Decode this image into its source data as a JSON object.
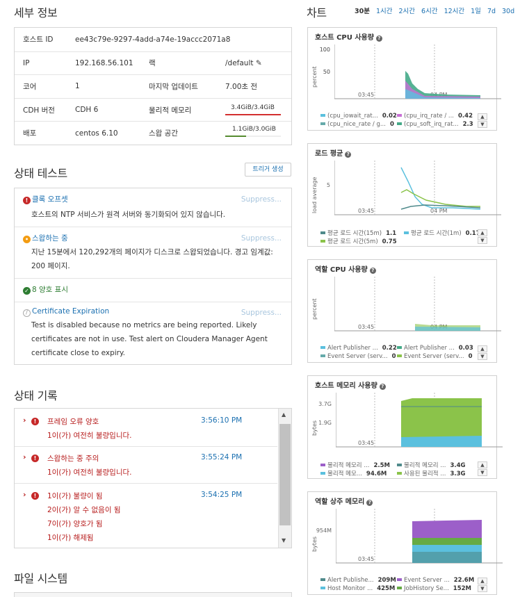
{
  "details": {
    "title": "세부 정보",
    "rows": [
      {
        "l1": "호스트 ID",
        "v1": "ee43c79e-9297-4add-a74e-19accc2071a8"
      },
      {
        "l1": "IP",
        "v1": "192.168.56.101",
        "l2": "랙",
        "v2": "/default"
      },
      {
        "l1": "코어",
        "v1": "1",
        "l2": "마지막 업데이트",
        "v2": "7.00초 전"
      },
      {
        "l1": "CDH 버전",
        "v1": "CDH 6",
        "l2": "물리적 메모리",
        "v2": "3.4GiB/3.4GiB"
      },
      {
        "l1": "배포",
        "v1": "centos 6.10",
        "l2": "스왑 공간",
        "v2": "1.1GiB/3.0GiB"
      }
    ]
  },
  "memory_bars": {
    "physical": 1.0,
    "swap": 0.37
  },
  "health_tests": {
    "title": "상태 테스트",
    "create_trigger": "트리거 생성",
    "items": [
      {
        "name": "클록 오프셋",
        "suppress": "Suppress...",
        "desc": "호스트의 NTP 서비스가 원격 서버와 동기화되어 있지 않습니다."
      },
      {
        "name": "스왑하는 중",
        "suppress": "Suppress...",
        "desc": "지난 15분에서 120,292개의 페이지가 디스크로 스왑되었습니다. 경고 임계값: 200 페이지."
      },
      {
        "name": "8 양호 표시"
      },
      {
        "name": "Certificate Expiration",
        "suppress": "Suppress...",
        "desc": "Test is disabled because no metrics are being reported. Likely certificates are not in use. Test alert on Cloudera Manager Agent certificate close to expiry."
      }
    ]
  },
  "health_history": {
    "title": "상태 기록",
    "items": [
      {
        "lines": [
          "프레임 오류 양호",
          "1이(가) 여전히 불량입니다."
        ],
        "time": "3:56:10 PM"
      },
      {
        "lines": [
          "스왑하는 중 주의",
          "1이(가) 여전히 불량입니다."
        ],
        "time": "3:55:24 PM"
      },
      {
        "lines": [
          "1이(가) 불량이 됨",
          "2이(가) 알 수 없음이 됨",
          "7이(가) 양호가 됨",
          "1이(가) 해제됨"
        ],
        "time": "3:54:25 PM"
      }
    ]
  },
  "filesystem": {
    "title": "파일 시스템"
  },
  "charts": {
    "title": "차트",
    "ranges": [
      "30분",
      "1시간",
      "2시간",
      "6시간",
      "12시간",
      "1일",
      "7d",
      "30d"
    ],
    "active": "30분"
  },
  "chart_data": [
    {
      "type": "area",
      "title": "호스트 CPU 사용량",
      "ylabel": "percent",
      "yticks": [
        "100",
        "50"
      ],
      "xticks": [
        "03:45",
        "04 PM"
      ],
      "legend": [
        {
          "name": "(cpu_iowait_rat...",
          "value": "0.02",
          "color": "#5bc0de"
        },
        {
          "name": "(cpu_irq_rate / ...",
          "value": "0.42",
          "color": "#c86fd6"
        },
        {
          "name": "(cpu_nice_rate / g...",
          "value": "0",
          "color": "#6aa"
        },
        {
          "name": "(cpu_soft_irq_rat...",
          "value": "2.3",
          "color": "#4a8"
        }
      ]
    },
    {
      "type": "line",
      "title": "로드 평균",
      "ylabel": "load average",
      "yticks": [
        "5"
      ],
      "xticks": [
        "03:45",
        "04 PM"
      ],
      "legend": [
        {
          "name": "평균 로드 시간(15m)",
          "value": "1.1",
          "color": "#4f8a8b"
        },
        {
          "name": "평균 로드 시간(1m)",
          "value": "0.17",
          "color": "#5bc0de"
        },
        {
          "name": "평균 로드 시간(5m)",
          "value": "0.75",
          "color": "#8bc34a"
        }
      ]
    },
    {
      "type": "area",
      "title": "역할 CPU 사용량",
      "ylabel": "percent",
      "yticks": [
        "100",
        "50"
      ],
      "xticks": [
        "03:45",
        "04 PM"
      ],
      "legend": [
        {
          "name": "Alert Publisher ...",
          "value": "0.22",
          "color": "#5bc0de"
        },
        {
          "name": "Alert Publisher ...",
          "value": "0.03",
          "color": "#4a8"
        },
        {
          "name": "Event Server (serv...",
          "value": "0",
          "color": "#6aa"
        },
        {
          "name": "Event Server (serv...",
          "value": "0",
          "color": "#8bc34a"
        }
      ]
    },
    {
      "type": "area",
      "title": "호스트 메모리 사용량",
      "ylabel": "bytes",
      "yticks": [
        "3.7G",
        "1.9G"
      ],
      "xticks": [
        "03:45",
        "04 PM"
      ],
      "legend": [
        {
          "name": "물리적 메모리 ...",
          "value": "2.5M",
          "color": "#9c5fc9"
        },
        {
          "name": "물리적 메모리 ...",
          "value": "3.4G",
          "color": "#4f8a8b"
        },
        {
          "name": "물리적 메모...",
          "value": "94.6M",
          "color": "#5bc0de"
        },
        {
          "name": "사용된 물리적 ...",
          "value": "3.3G",
          "color": "#8bc34a"
        }
      ]
    },
    {
      "type": "area",
      "title": "역할 상주 메모리",
      "ylabel": "bytes",
      "yticks": [
        "954M"
      ],
      "xticks": [
        "03:45",
        "04 PM"
      ],
      "legend": [
        {
          "name": "Alert Publishe...",
          "value": "209M",
          "color": "#4f8a8b"
        },
        {
          "name": "Event Server ...",
          "value": "22.6M",
          "color": "#9c5fc9"
        },
        {
          "name": "Host Monitor ...",
          "value": "425M",
          "color": "#5bc0de"
        },
        {
          "name": "JobHistory Se...",
          "value": "152M",
          "color": "#6a4"
        }
      ]
    }
  ]
}
